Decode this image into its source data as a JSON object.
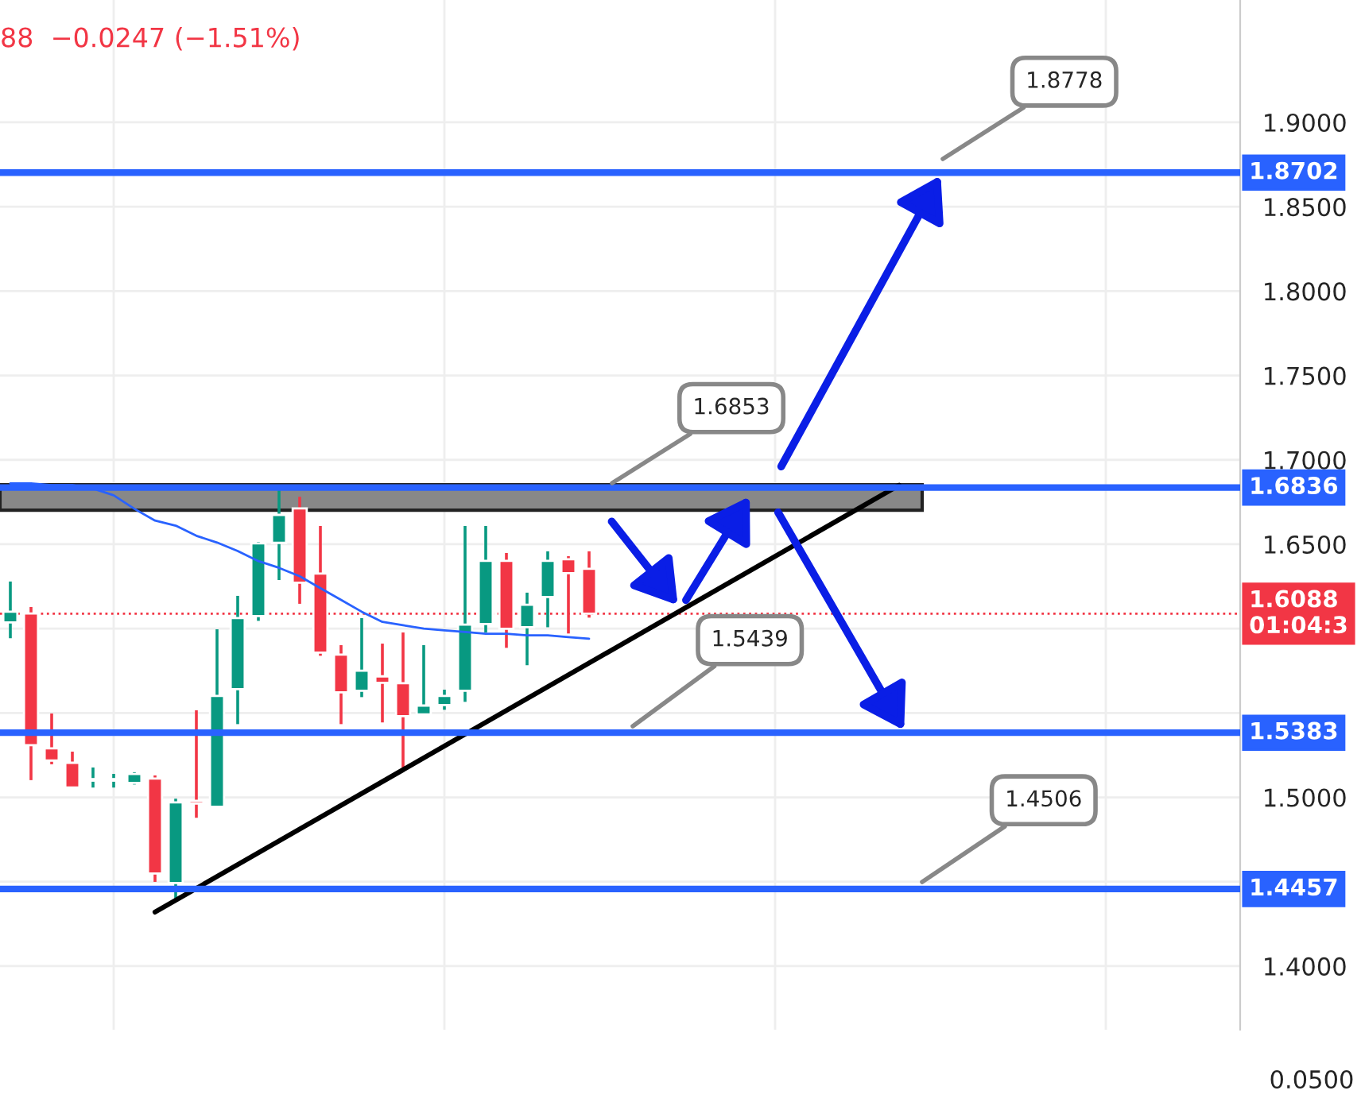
{
  "chart_data": {
    "type": "candlestick",
    "categories": [
      null,
      null,
      null,
      null,
      null,
      null,
      null,
      null,
      null,
      null,
      null,
      null,
      null,
      null,
      null,
      null,
      null,
      null,
      null,
      null,
      null,
      null,
      null,
      null,
      null,
      null,
      null,
      null,
      null,
      null,
      null,
      null,
      null,
      null,
      null,
      null,
      null,
      null,
      null,
      null,
      null,
      null,
      null,
      null,
      null,
      null,
      null,
      null,
      null,
      null,
      null,
      null,
      null,
      null,
      null,
      null,
      null,
      null,
      null,
      null
    ],
    "ohlc": [
      [
        1.6037,
        1.6279,
        1.5943,
        1.61
      ],
      [
        1.609,
        1.6128,
        1.5102,
        1.5309
      ],
      [
        1.529,
        1.5497,
        1.5196,
        1.5218
      ],
      [
        1.5205,
        1.5271,
        1.5058,
        1.5058
      ],
      [
        1.5099,
        1.5177,
        1.5058,
        1.5099
      ],
      [
        1.5099,
        1.5139,
        1.5058,
        1.5099
      ],
      [
        1.5086,
        1.5149,
        1.5076,
        1.5139
      ],
      [
        1.5111,
        1.513,
        1.4499,
        1.4549
      ],
      [
        1.4492,
        1.4992,
        1.4398,
        1.497
      ],
      [
        1.4979,
        1.5516,
        1.4879,
        1.4963
      ],
      [
        1.4944,
        1.5996,
        1.4944,
        1.5601
      ],
      [
        1.5641,
        1.6194,
        1.5434,
        1.6062
      ],
      [
        1.6074,
        1.6514,
        1.6046,
        1.6505
      ],
      [
        1.6508,
        1.6834,
        1.6288,
        1.6674
      ],
      [
        1.6712,
        1.6781,
        1.6147,
        1.6272
      ],
      [
        1.6326,
        1.6608,
        1.5839,
        1.5858
      ],
      [
        1.5846,
        1.5902,
        1.5434,
        1.5622
      ],
      [
        1.5632,
        1.6062,
        1.5594,
        1.5751
      ],
      [
        1.5717,
        1.5911,
        1.5444,
        1.5679
      ],
      [
        1.5676,
        1.5977,
        1.5177,
        1.5481
      ],
      [
        1.5491,
        1.5902,
        1.5491,
        1.5544
      ],
      [
        1.5547,
        1.5638,
        1.5519,
        1.5601
      ],
      [
        1.5632,
        1.6608,
        1.5566,
        1.6024
      ],
      [
        1.6027,
        1.6608,
        1.5977,
        1.6401
      ],
      [
        1.6401,
        1.6448,
        1.5886,
        1.5999
      ],
      [
        1.6008,
        1.6213,
        1.5783,
        1.6141
      ],
      [
        1.6187,
        1.6458,
        1.6008,
        1.6401
      ],
      [
        1.6411,
        1.6429,
        1.5971,
        1.6329
      ],
      [
        1.6354,
        1.6458,
        1.6065,
        1.6088
      ],
      null,
      null,
      null,
      null,
      null,
      null,
      null,
      null,
      null,
      null,
      null,
      null,
      null,
      null,
      null,
      null,
      null,
      null,
      null,
      null,
      null,
      null,
      null,
      null,
      null,
      null,
      null,
      null,
      null,
      null,
      null
    ],
    "colors": [
      "#089981",
      "#f23645",
      "#f23645",
      "#f23645",
      "#089981",
      "#089981",
      "#089981",
      "#f23645",
      "#089981",
      "#f23645",
      "#089981",
      "#089981",
      "#089981",
      "#089981",
      "#f23645",
      "#f23645",
      "#f23645",
      "#089981",
      "#f23645",
      "#f23645",
      "#089981",
      "#089981",
      "#089981",
      "#089981",
      "#f23645",
      "#089981",
      "#089981",
      "#f23645",
      "#f23645",
      null,
      null,
      null,
      null,
      null,
      null,
      null,
      null,
      null,
      null,
      null,
      null,
      null,
      null,
      null,
      null,
      null,
      null,
      null,
      null,
      null,
      null,
      null,
      null,
      null,
      null,
      null,
      null,
      null,
      null,
      null
    ],
    "series": [
      {
        "type": "line",
        "color": "#2962ff",
        "values": [
          1.686,
          1.686,
          1.685,
          1.685,
          1.683,
          1.679,
          1.671,
          1.664,
          1.661,
          1.655,
          1.651,
          1.646,
          1.64,
          1.636,
          1.631,
          1.624,
          1.617,
          1.61,
          1.604,
          1.602,
          1.6,
          1.599,
          1.598,
          1.597,
          1.597,
          1.596,
          1.596,
          1.595,
          1.594,
          null,
          null,
          null,
          null,
          null,
          null,
          null,
          null,
          null,
          null,
          null,
          null,
          null,
          null,
          null,
          null,
          null,
          null,
          null,
          null,
          null,
          null,
          null,
          null,
          null,
          null,
          null,
          null,
          null,
          null,
          null
        ]
      },
      {
        "type": "line",
        "color": "#000000",
        "values": [
          null,
          null,
          null,
          null,
          null,
          null,
          null,
          1.432,
          null,
          null,
          null,
          null,
          null,
          null,
          null,
          null,
          null,
          null,
          null,
          null,
          null,
          null,
          null,
          null,
          null,
          null,
          null,
          null,
          null,
          null,
          null,
          null,
          null,
          null,
          null,
          null,
          null,
          null,
          null,
          null,
          null,
          null,
          null,
          1.685,
          null,
          null,
          null,
          null,
          null,
          null,
          null,
          null,
          null,
          null,
          null,
          null,
          null,
          null,
          null,
          null
        ]
      }
    ],
    "ylim": [
      1.3623,
      1.9725
    ],
    "yticks": [
      {
        "value": 1.4,
        "label": "1.4000"
      },
      {
        "value": 1.45,
        "label": null
      },
      {
        "value": 1.5,
        "label": "1.5000"
      },
      {
        "value": 1.55,
        "label": null
      },
      {
        "value": 1.6,
        "label": null
      },
      {
        "value": 1.65,
        "label": "1.6500"
      },
      {
        "value": 1.7,
        "label": "1.7000"
      },
      {
        "value": 1.75,
        "label": "1.7500"
      },
      {
        "value": 1.8,
        "label": "1.8000"
      },
      {
        "value": 1.85,
        "label": "1.8500"
      },
      {
        "value": 1.9,
        "label": "1.9000"
      }
    ],
    "tick_labels": "y",
    "grid": true,
    "ref_lines": [
      {
        "axis": "y",
        "value": 1.8702,
        "label": "1.8702",
        "color": "#2962ff",
        "line_style": "solid"
      },
      {
        "axis": "y",
        "value": 1.6836,
        "label": "1.6836",
        "color": "#2962ff",
        "line_style": "solid"
      },
      {
        "axis": "y",
        "value": 1.5383,
        "label": "1.5383",
        "color": "#2962ff",
        "line_style": "solid"
      },
      {
        "axis": "y",
        "value": 1.4457,
        "label": "1.4457",
        "color": "#2962ff",
        "line_style": "solid"
      },
      {
        "axis": "y",
        "value": 1.6088,
        "label": "1.6088\n01:04:3",
        "color": "#f23645",
        "line_style": "dotted"
      }
    ],
    "bands": [
      {
        "axis": "y",
        "from": 1.6702,
        "to": 1.6853,
        "color": "#888888"
      }
    ],
    "annotations": [
      "1.8778",
      "1.6853",
      "1.5439",
      "1.4506",
      "88  −0.0247 (−1.51%)",
      "0.0500"
    ]
  }
}
